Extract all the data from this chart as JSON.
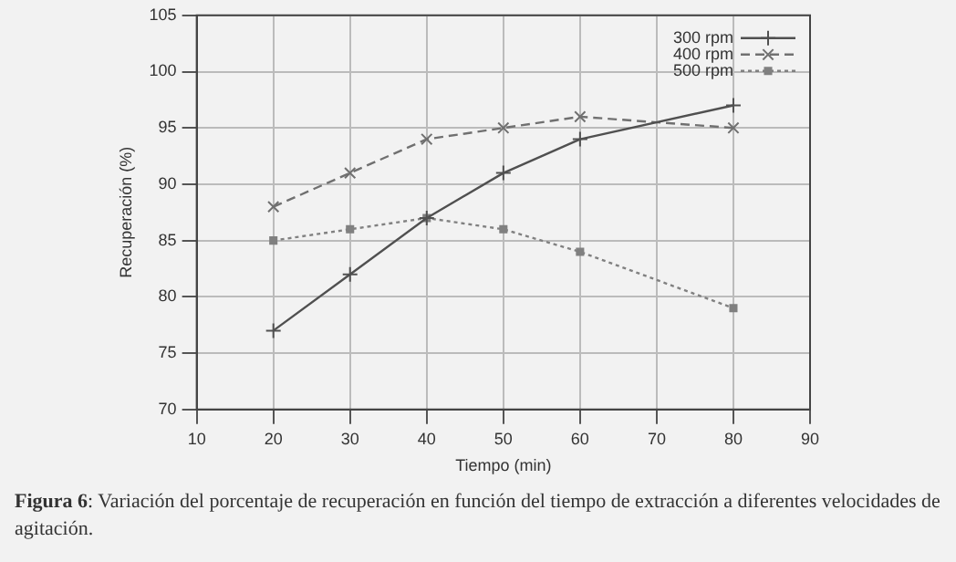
{
  "chart_data": {
    "type": "line",
    "xlabel": "Tiempo (min)",
    "ylabel": "Recuperación (%)",
    "x": [
      20,
      30,
      40,
      50,
      60,
      80
    ],
    "series": [
      {
        "name": "300 rpm",
        "color": "#505050",
        "values": [
          77,
          82,
          87,
          91,
          94,
          97
        ],
        "marker": "cross",
        "line_style": "solid"
      },
      {
        "name": "400 rpm",
        "color": "#707070",
        "values": [
          88,
          91,
          94,
          95,
          96,
          95
        ],
        "marker": "crossRot",
        "line_style": "dashed"
      },
      {
        "name": "500 rpm",
        "color": "#808080",
        "values": [
          85,
          86,
          87,
          86,
          84,
          79
        ],
        "marker": "square",
        "line_style": "dotted"
      }
    ],
    "xlim": [
      10,
      90
    ],
    "xticks": [
      10,
      20,
      30,
      40,
      50,
      60,
      70,
      80,
      90
    ],
    "ylim": [
      70,
      105
    ],
    "yticks": [
      70,
      75,
      80,
      85,
      90,
      95,
      100,
      105
    ],
    "grid": true,
    "legend": "top right",
    "annotations": [
      "Figura 6: Variación del porcentaje de recuperación en función del tiempo de extracción a diferentes velocidades de agitación."
    ]
  }
}
